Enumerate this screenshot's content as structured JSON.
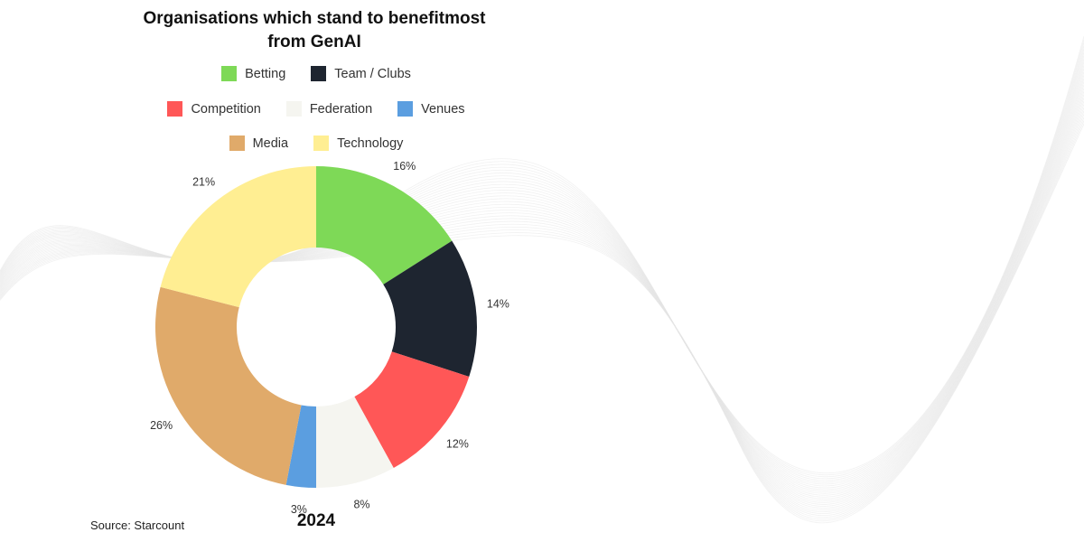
{
  "chart_data": {
    "type": "pie",
    "title_line1": "Organisations which stand to benefitmost",
    "title_line2": "from GenAI",
    "categories": [
      "Betting",
      "Team / Clubs",
      "Competition",
      "Federation",
      "Venues",
      "Media",
      "Technology"
    ],
    "values": [
      16,
      14,
      12,
      8,
      3,
      26,
      21
    ],
    "value_labels": [
      "16%",
      "14%",
      "12%",
      "8%",
      "3%",
      "26%",
      "21%"
    ],
    "colors": [
      "#7ed957",
      "#1e2530",
      "#ff5757",
      "#f5f5f0",
      "#5b9ee0",
      "#e0aa6a",
      "#ffee92"
    ],
    "legend_placement": "top",
    "legend_rows": [
      [
        "Betting",
        "Team / Clubs"
      ],
      [
        "Competition",
        "Federation",
        "Venues"
      ],
      [
        "Media",
        "Technology"
      ]
    ],
    "caption": "2024"
  },
  "source_text": "Source: Starcount"
}
